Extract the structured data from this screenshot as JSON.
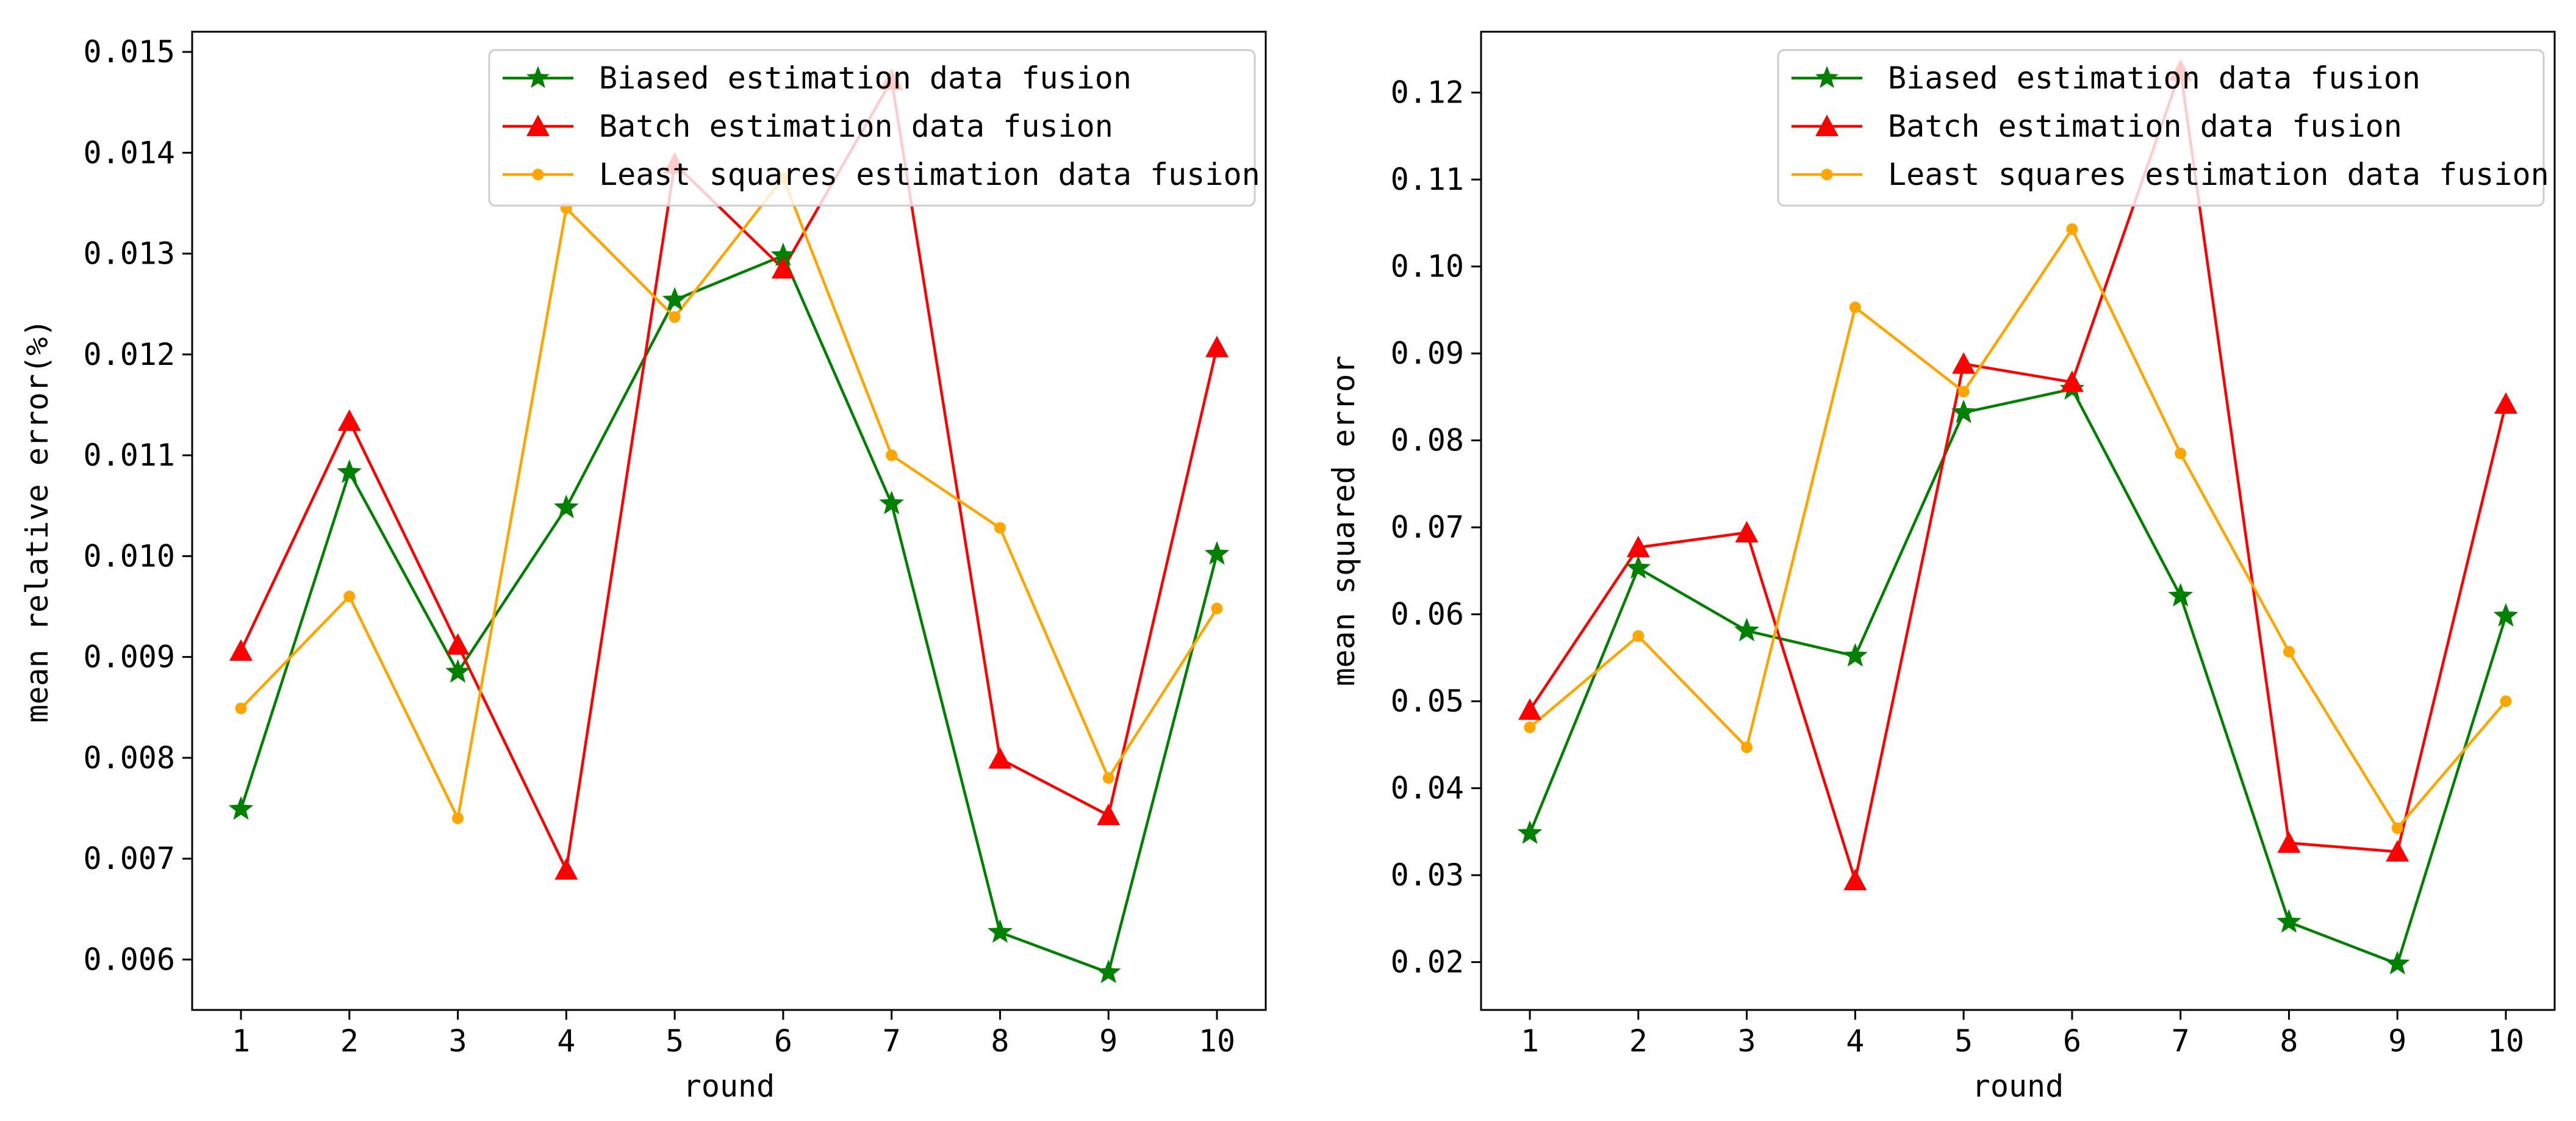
{
  "figure_title": "",
  "colors": {
    "biased": "#008000",
    "batch": "#ff0000",
    "least_squares": "#ffa500",
    "axes": "#000000",
    "legend_border": "#cccccc"
  },
  "chart_data": [
    {
      "type": "line",
      "title": "",
      "xlabel": "round",
      "ylabel": "mean relative error(%)",
      "xlim": [
        0.55,
        10.45
      ],
      "ylim": [
        0.0055,
        0.0152
      ],
      "x_ticks": [
        1,
        2,
        3,
        4,
        5,
        6,
        7,
        8,
        9,
        10
      ],
      "x_tick_labels": [
        "1",
        "2",
        "3",
        "4",
        "5",
        "6",
        "7",
        "8",
        "9",
        "10"
      ],
      "y_ticks": [
        0.006,
        0.007,
        0.008,
        0.009,
        0.01,
        0.011,
        0.012,
        0.013,
        0.014,
        0.015
      ],
      "y_tick_labels": [
        "0.006",
        "0.007",
        "0.008",
        "0.009",
        "0.010",
        "0.011",
        "0.012",
        "0.013",
        "0.014",
        "0.015"
      ],
      "grid": false,
      "legend_position": "top-right",
      "x": [
        1,
        2,
        3,
        4,
        5,
        6,
        7,
        8,
        9,
        10
      ],
      "series": [
        {
          "name": "Biased estimation data fusion",
          "color": "#008000",
          "marker": "star",
          "values": [
            0.00749,
            0.01083,
            0.00885,
            0.01048,
            0.01254,
            0.01298,
            0.01052,
            0.00627,
            0.00587,
            0.01002
          ]
        },
        {
          "name": "Batch estimation data fusion",
          "color": "#ff0000",
          "marker": "triangle",
          "values": [
            0.00906,
            0.01134,
            0.00912,
            0.00689,
            0.01389,
            0.01285,
            0.01472,
            0.00799,
            0.00743,
            0.01207
          ]
        },
        {
          "name": "Least squares estimation data fusion",
          "color": "#ffa500",
          "marker": "circle",
          "values": [
            0.00849,
            0.0096,
            0.0074,
            0.01345,
            0.01237,
            0.01375,
            0.011,
            0.01028,
            0.0078,
            0.00948
          ]
        }
      ]
    },
    {
      "type": "line",
      "title": "",
      "xlabel": "round",
      "ylabel": "mean squared error",
      "xlim": [
        0.55,
        10.45
      ],
      "ylim": [
        0.0145,
        0.127
      ],
      "x_ticks": [
        1,
        2,
        3,
        4,
        5,
        6,
        7,
        8,
        9,
        10
      ],
      "x_tick_labels": [
        "1",
        "2",
        "3",
        "4",
        "5",
        "6",
        "7",
        "8",
        "9",
        "10"
      ],
      "y_ticks": [
        0.02,
        0.03,
        0.04,
        0.05,
        0.06,
        0.07,
        0.08,
        0.09,
        0.1,
        0.11,
        0.12
      ],
      "y_tick_labels": [
        "0.02",
        "0.03",
        "0.04",
        "0.05",
        "0.06",
        "0.07",
        "0.08",
        "0.09",
        "0.10",
        "0.11",
        "0.12"
      ],
      "grid": false,
      "legend_position": "top-right",
      "x": [
        1,
        2,
        3,
        4,
        5,
        6,
        7,
        8,
        9,
        10
      ],
      "series": [
        {
          "name": "Biased estimation data fusion",
          "color": "#008000",
          "marker": "star",
          "values": [
            0.0348,
            0.0653,
            0.0581,
            0.0552,
            0.0832,
            0.0859,
            0.0621,
            0.0246,
            0.0198,
            0.0598
          ]
        },
        {
          "name": "Batch estimation data fusion",
          "color": "#ff0000",
          "marker": "triangle",
          "values": [
            0.049,
            0.0677,
            0.0694,
            0.0294,
            0.0888,
            0.0867,
            0.1225,
            0.0337,
            0.0327,
            0.0842
          ]
        },
        {
          "name": "Least squares estimation data fusion",
          "color": "#ffa500",
          "marker": "circle",
          "values": [
            0.047,
            0.0575,
            0.0447,
            0.0953,
            0.0856,
            0.1043,
            0.0785,
            0.0557,
            0.0354,
            0.05
          ]
        }
      ]
    }
  ]
}
